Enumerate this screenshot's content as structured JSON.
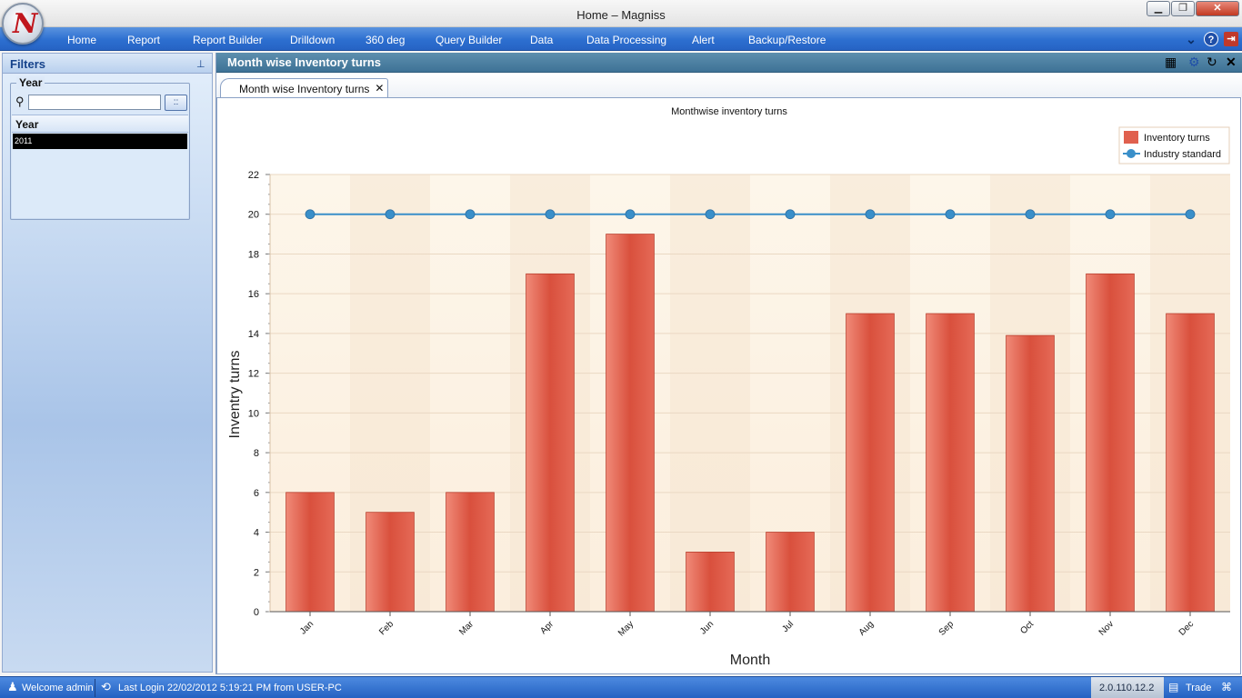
{
  "window": {
    "title": "Home – Magniss",
    "logo_letter": "N",
    "minimize_label": "▁",
    "maximize_label": "❐",
    "close_label": "✕"
  },
  "menu": {
    "items": [
      {
        "label": "Home"
      },
      {
        "label": "Report"
      },
      {
        "label": "Report Builder"
      },
      {
        "label": "Drilldown"
      },
      {
        "label": "360 deg"
      },
      {
        "label": "Query Builder"
      },
      {
        "label": "Data"
      },
      {
        "label": "Data Processing"
      },
      {
        "label": "Alert"
      },
      {
        "label": "Backup/Restore"
      }
    ],
    "right_icons": [
      "chevron-down-icon",
      "help-icon",
      "exit-icon"
    ]
  },
  "filters": {
    "title": "Filters",
    "year_group_label": "Year",
    "search_value": "",
    "search_button_label": "::",
    "list_header": "Year",
    "list_items": [
      "2011"
    ],
    "selected_item": "2011"
  },
  "main": {
    "title": "Month wise Inventory turns",
    "tab_label": "Month wise Inventory turns",
    "tab_close": "✕",
    "header_icons": [
      "grid-icon",
      "chart-settings-icon",
      "refresh-icon",
      "close-icon"
    ]
  },
  "chart_data": {
    "type": "bar",
    "title": "Monthwise inventory turns",
    "xlabel": "Month",
    "ylabel": "Inventry turns",
    "ylim": [
      0,
      22
    ],
    "yticks": [
      0,
      2,
      4,
      6,
      8,
      10,
      12,
      14,
      16,
      18,
      20,
      22
    ],
    "categories": [
      "Jan",
      "Feb",
      "Mar",
      "Apr",
      "May",
      "Jun",
      "Jul",
      "Aug",
      "Sep",
      "Oct",
      "Nov",
      "Dec"
    ],
    "series": [
      {
        "name": "Inventory turns",
        "type": "bar",
        "color": "#e0604e",
        "values": [
          6,
          5,
          6,
          17,
          19,
          3,
          4,
          15,
          15,
          13.9,
          17,
          15
        ]
      },
      {
        "name": "Industry standard",
        "type": "line",
        "color": "#3a8fc9",
        "values": [
          20,
          20,
          20,
          20,
          20,
          20,
          20,
          20,
          20,
          20,
          20,
          20
        ]
      }
    ],
    "legend_position": "top-right",
    "grid": true
  },
  "status": {
    "welcome": "Welcome admin",
    "last_login": "Last Login 22/02/2012 5:19:21 PM   from USER-PC",
    "version": "2.0.110.12.2",
    "trade_label": "Trade"
  }
}
